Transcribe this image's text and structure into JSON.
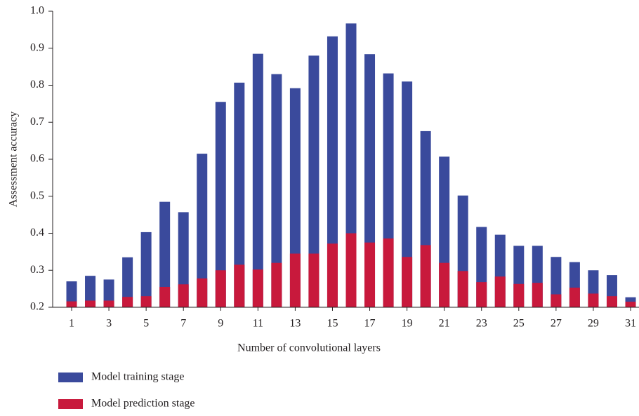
{
  "chart_data": {
    "type": "bar",
    "xlabel": "Number of convolutional layers",
    "ylabel": "Assessment accuracy",
    "categories": [
      1,
      null,
      3,
      null,
      5,
      null,
      7,
      null,
      9,
      null,
      11,
      null,
      13,
      null,
      15,
      null,
      17,
      null,
      19,
      null,
      21,
      null,
      23,
      null,
      25,
      null,
      27,
      null,
      29,
      null,
      31
    ],
    "series": [
      {
        "name": "Model training stage",
        "color": "#3a4a9c",
        "values": [
          0.27,
          0.285,
          0.275,
          0.335,
          0.403,
          0.485,
          0.457,
          0.615,
          0.755,
          0.807,
          0.885,
          0.83,
          0.792,
          0.88,
          0.932,
          0.967,
          0.884,
          0.832,
          0.81,
          0.676,
          0.607,
          0.502,
          0.417,
          0.396,
          0.366,
          0.366,
          0.336,
          0.322,
          0.3,
          0.287,
          0.227
        ]
      },
      {
        "name": "Model prediction stage",
        "color": "#c8193c",
        "values": [
          0.216,
          0.218,
          0.218,
          0.228,
          0.23,
          0.255,
          0.262,
          0.278,
          0.3,
          0.315,
          0.302,
          0.32,
          0.345,
          0.345,
          0.372,
          0.4,
          0.375,
          0.386,
          0.336,
          0.368,
          0.32,
          0.298,
          0.268,
          0.283,
          0.263,
          0.266,
          0.235,
          0.253,
          0.237,
          0.23,
          0.215
        ]
      }
    ],
    "ylim": [
      0.2,
      1.0
    ],
    "yticks": [
      0.2,
      0.3,
      0.4,
      0.5,
      0.6,
      0.7,
      0.8,
      0.9,
      {
        "value": 1.0,
        "label": "1.0"
      }
    ],
    "bar_mode": "overlay"
  }
}
